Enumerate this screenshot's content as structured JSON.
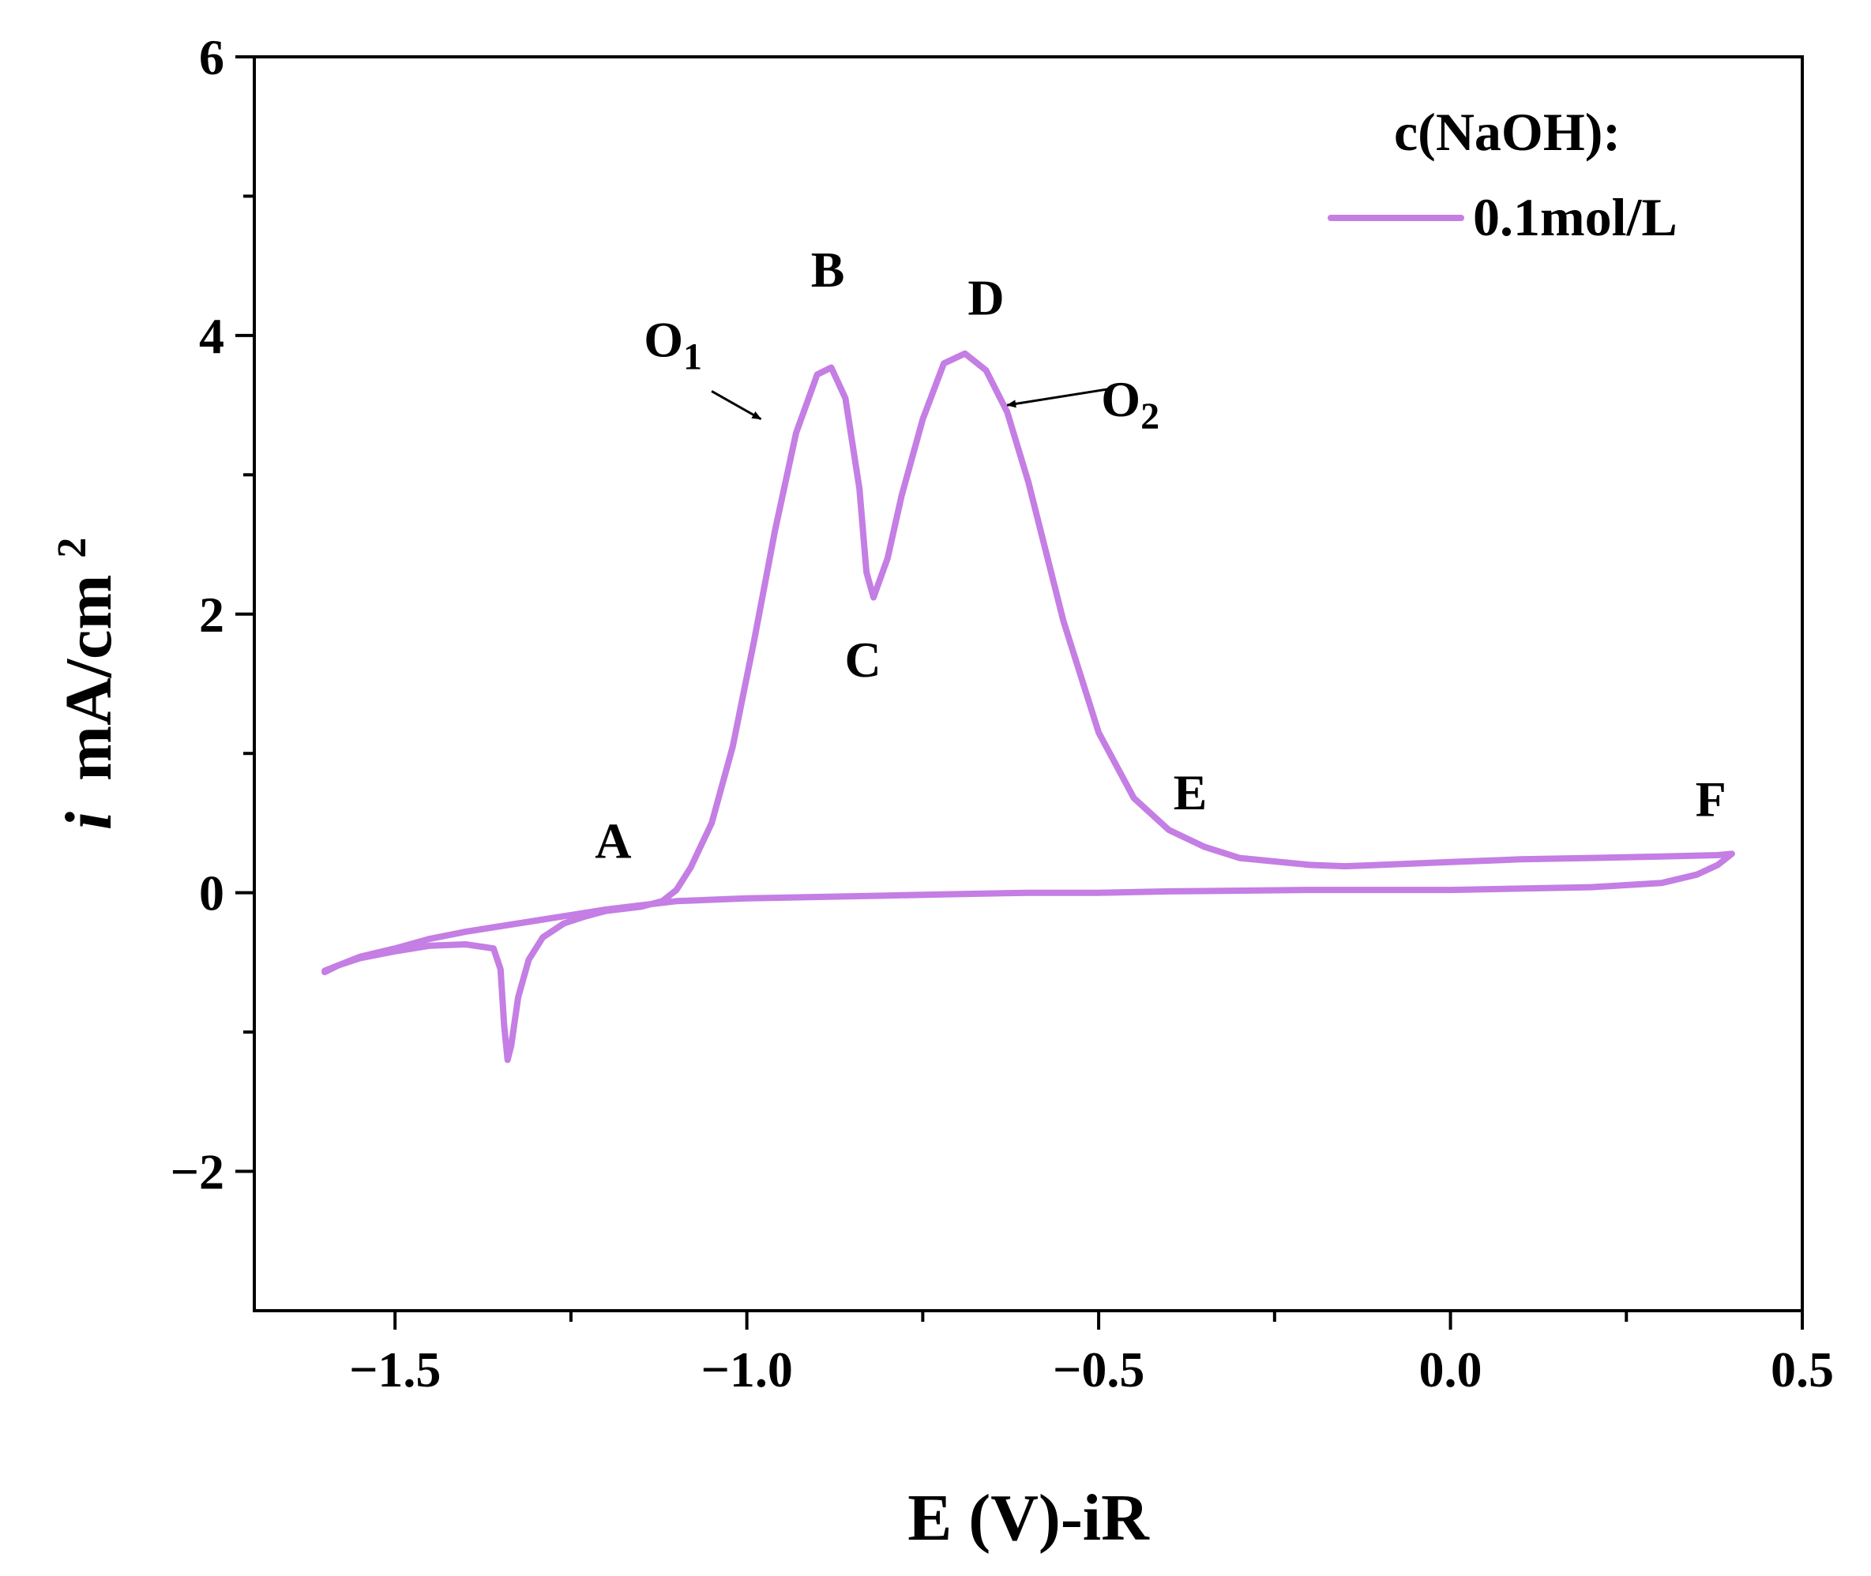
{
  "chart_data": {
    "type": "line",
    "title": "",
    "xlabel": "E (V)-iR",
    "ylabel_italic": "i",
    "ylabel_unit": "mA/cm",
    "ylabel_sup": "2",
    "xlim": [
      -1.7,
      0.5
    ],
    "ylim": [
      -3,
      6
    ],
    "xticks": [
      -1.5,
      -1.0,
      -0.5,
      0.0,
      0.5
    ],
    "xtick_labels": [
      "−1.5",
      "−1.0",
      "−0.5",
      "0.0",
      "0.5"
    ],
    "yticks": [
      -2,
      0,
      2,
      4,
      6
    ],
    "ytick_labels": [
      "−2",
      "0",
      "2",
      "4",
      "6"
    ],
    "grid": false,
    "legend": {
      "title": "c(NaOH):",
      "placement": "top-right",
      "entries": [
        {
          "label": "0.1mol/L",
          "color": "#c47ee4"
        }
      ]
    },
    "series": [
      {
        "name": "0.1mol/L",
        "color": "#c47ee4",
        "points": [
          [
            -1.6,
            -0.56
          ],
          [
            -1.57,
            -0.5
          ],
          [
            -1.55,
            -0.46
          ],
          [
            -1.5,
            -0.4
          ],
          [
            -1.45,
            -0.33
          ],
          [
            -1.4,
            -0.28
          ],
          [
            -1.35,
            -0.24
          ],
          [
            -1.3,
            -0.2
          ],
          [
            -1.25,
            -0.16
          ],
          [
            -1.2,
            -0.12
          ],
          [
            -1.15,
            -0.09
          ],
          [
            -1.1,
            -0.06
          ],
          [
            -1.05,
            -0.05
          ],
          [
            -1.0,
            -0.04
          ],
          [
            -0.9,
            -0.03
          ],
          [
            -0.8,
            -0.02
          ],
          [
            -0.7,
            -0.01
          ],
          [
            -0.6,
            0.0
          ],
          [
            -0.5,
            0.0
          ],
          [
            -0.4,
            0.01
          ],
          [
            -0.2,
            0.02
          ],
          [
            0.0,
            0.02
          ],
          [
            0.2,
            0.04
          ],
          [
            0.3,
            0.07
          ],
          [
            0.35,
            0.13
          ],
          [
            0.38,
            0.2
          ],
          [
            0.4,
            0.28
          ],
          [
            0.38,
            0.27
          ],
          [
            0.3,
            0.26
          ],
          [
            0.2,
            0.25
          ],
          [
            0.1,
            0.24
          ],
          [
            0.0,
            0.22
          ],
          [
            -0.1,
            0.2
          ],
          [
            -0.15,
            0.19
          ],
          [
            -0.2,
            0.2
          ],
          [
            -0.3,
            0.25
          ],
          [
            -0.35,
            0.33
          ],
          [
            -0.4,
            0.45
          ],
          [
            -0.45,
            0.68
          ],
          [
            -0.5,
            1.15
          ],
          [
            -0.55,
            1.95
          ],
          [
            -0.6,
            2.95
          ],
          [
            -0.63,
            3.45
          ],
          [
            -0.66,
            3.75
          ],
          [
            -0.69,
            3.87
          ],
          [
            -0.72,
            3.8
          ],
          [
            -0.75,
            3.4
          ],
          [
            -0.78,
            2.85
          ],
          [
            -0.8,
            2.4
          ],
          [
            -0.82,
            2.12
          ],
          [
            -0.83,
            2.3
          ],
          [
            -0.84,
            2.9
          ],
          [
            -0.86,
            3.55
          ],
          [
            -0.88,
            3.77
          ],
          [
            -0.9,
            3.72
          ],
          [
            -0.93,
            3.3
          ],
          [
            -0.96,
            2.6
          ],
          [
            -0.99,
            1.8
          ],
          [
            -1.02,
            1.05
          ],
          [
            -1.05,
            0.5
          ],
          [
            -1.08,
            0.18
          ],
          [
            -1.1,
            0.02
          ],
          [
            -1.12,
            -0.06
          ],
          [
            -1.15,
            -0.1
          ],
          [
            -1.2,
            -0.13
          ],
          [
            -1.23,
            -0.17
          ],
          [
            -1.26,
            -0.22
          ],
          [
            -1.29,
            -0.32
          ],
          [
            -1.31,
            -0.48
          ],
          [
            -1.325,
            -0.75
          ],
          [
            -1.335,
            -1.1
          ],
          [
            -1.34,
            -1.2
          ],
          [
            -1.345,
            -0.95
          ],
          [
            -1.35,
            -0.55
          ],
          [
            -1.36,
            -0.4
          ],
          [
            -1.4,
            -0.37
          ],
          [
            -1.45,
            -0.38
          ],
          [
            -1.5,
            -0.42
          ],
          [
            -1.55,
            -0.47
          ],
          [
            -1.58,
            -0.52
          ],
          [
            -1.6,
            -0.57
          ]
        ]
      }
    ],
    "annotations": [
      {
        "text": "A",
        "x": -1.19,
        "y": 0.25
      },
      {
        "text": "B",
        "x": -0.885,
        "y": 4.35
      },
      {
        "text": "C",
        "x": -0.835,
        "y": 1.55
      },
      {
        "text": "D",
        "x": -0.66,
        "y": 4.15
      },
      {
        "text": "E",
        "x": -0.37,
        "y": 0.6
      },
      {
        "text": "F",
        "x": 0.37,
        "y": 0.55
      }
    ],
    "arrow_labels": [
      {
        "text": "O",
        "sub": "1",
        "label_x": -1.105,
        "label_y": 3.85,
        "from": [
          -1.05,
          3.6
        ],
        "to": [
          -0.98,
          3.4
        ]
      },
      {
        "text": "O",
        "sub": "2",
        "label_x": -0.455,
        "label_y": 3.42,
        "from": [
          -0.48,
          3.62
        ],
        "to": [
          -0.63,
          3.5
        ]
      }
    ]
  }
}
